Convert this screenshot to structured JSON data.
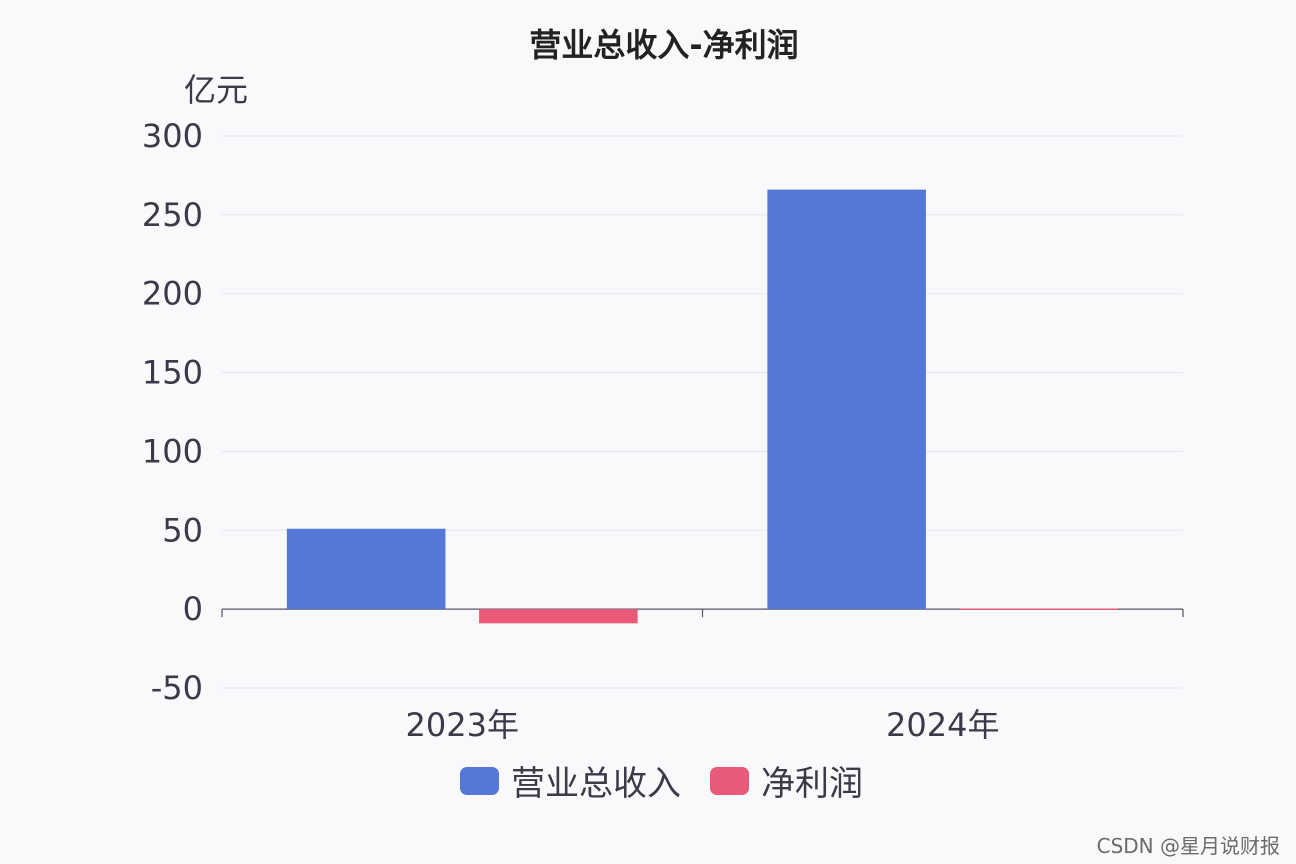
{
  "chart_data": {
    "type": "bar",
    "title": "营业总收入-净利润",
    "ylabel": "亿元",
    "xlabel": "",
    "categories": [
      "2023年",
      "2024年"
    ],
    "ylim": [
      -50,
      300
    ],
    "yticks": [
      300,
      250,
      200,
      150,
      100,
      50,
      0,
      -50
    ],
    "series": [
      {
        "name": "营业总收入",
        "color": "#5578d8",
        "values": [
          51,
          266
        ]
      },
      {
        "name": "净利润",
        "color": "#e85a78",
        "values": [
          -9,
          0.4
        ]
      }
    ],
    "legend": "bottom-center",
    "grid": true
  },
  "watermark": "CSDN @星月说财报"
}
